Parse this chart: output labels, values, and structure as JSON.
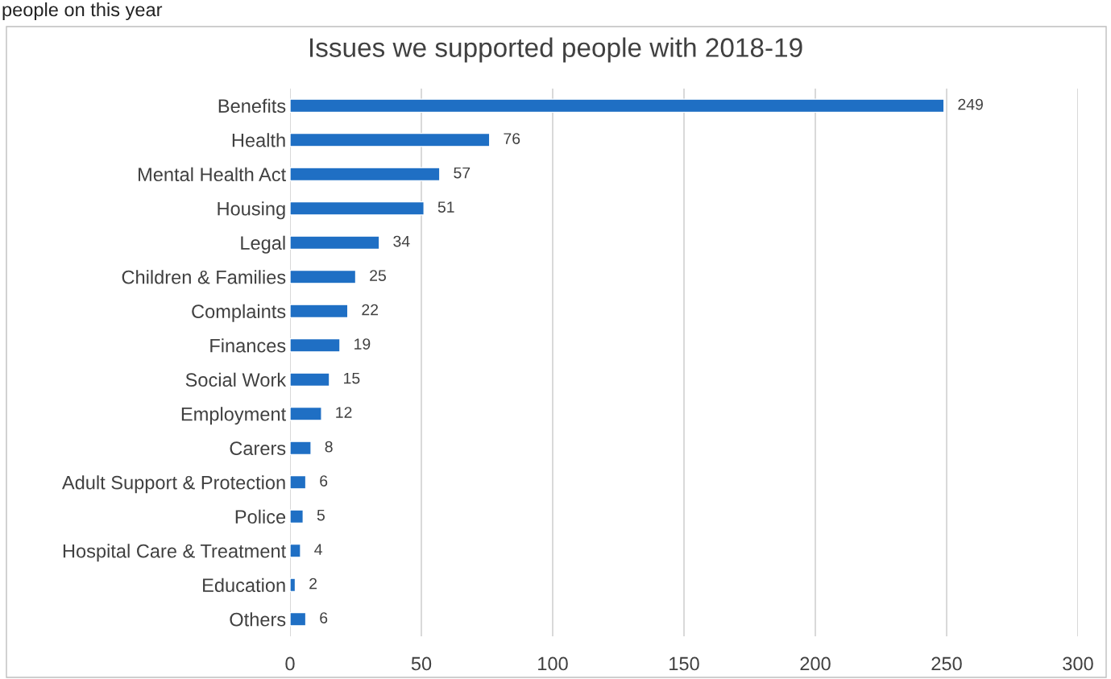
{
  "chart_data": {
    "type": "bar",
    "orientation": "horizontal",
    "title": "Issues we supported people with 2018-19",
    "annotations": [
      "people on this year"
    ],
    "categories": [
      "Benefits",
      "Health",
      "Mental Health Act",
      "Housing",
      "Legal",
      "Children & Families",
      "Complaints",
      "Finances",
      "Social Work",
      "Employment",
      "Carers",
      "Adult Support & Protection",
      "Police",
      "Hospital Care & Treatment",
      "Education",
      "Others"
    ],
    "values": [
      249,
      76,
      57,
      51,
      34,
      25,
      22,
      19,
      15,
      12,
      8,
      6,
      5,
      4,
      2,
      6
    ],
    "color": "#1f6fc4",
    "data_labels": true,
    "xlim": [
      0,
      300
    ],
    "xticks": [
      0,
      50,
      100,
      150,
      200,
      250,
      300
    ],
    "grid": "x",
    "legend": false
  }
}
